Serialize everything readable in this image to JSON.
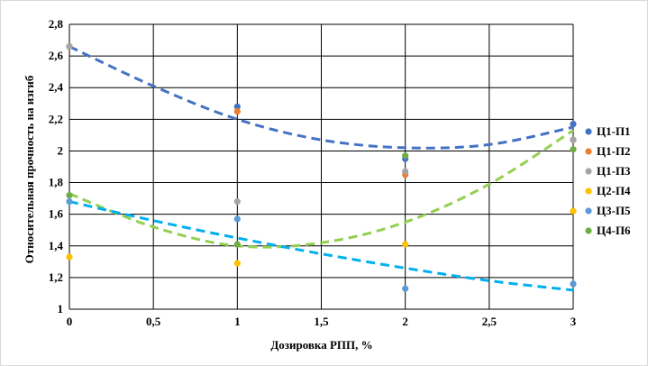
{
  "chart_data": {
    "type": "scatter",
    "title": "",
    "xlabel": "Дозировка РПП, %",
    "ylabel": "Относительная прочность на изгиб",
    "xlim": [
      0,
      3
    ],
    "ylim": [
      1,
      2.8
    ],
    "x_ticks": [
      {
        "value": 0,
        "label": "0"
      },
      {
        "value": 0.5,
        "label": "0,5"
      },
      {
        "value": 1,
        "label": "1"
      },
      {
        "value": 1.5,
        "label": "1,5"
      },
      {
        "value": 2,
        "label": "2"
      },
      {
        "value": 2.5,
        "label": "2,5"
      },
      {
        "value": 3,
        "label": "3"
      }
    ],
    "y_ticks": [
      {
        "value": 1,
        "label": "1"
      },
      {
        "value": 1.2,
        "label": "1,2"
      },
      {
        "value": 1.4,
        "label": "1,4"
      },
      {
        "value": 1.6,
        "label": "1,6"
      },
      {
        "value": 1.8,
        "label": "1,8"
      },
      {
        "value": 2,
        "label": "2"
      },
      {
        "value": 2.2,
        "label": "2,2"
      },
      {
        "value": 2.4,
        "label": "2,4"
      },
      {
        "value": 2.6,
        "label": "2,6"
      },
      {
        "value": 2.8,
        "label": "2,8"
      }
    ],
    "grid": true,
    "legend_position": "right",
    "series": [
      {
        "name": "Ц1-П1",
        "color": "#4472c4",
        "x": [
          0,
          1,
          2,
          3
        ],
        "y": [
          2.66,
          2.28,
          1.95,
          2.17
        ]
      },
      {
        "name": "Ц1-П2",
        "color": "#ed7d31",
        "x": [
          0,
          1,
          2,
          3
        ],
        "y": [
          2.66,
          2.25,
          1.85,
          2.07
        ]
      },
      {
        "name": "Ц1-П3",
        "color": "#a5a5a5",
        "x": [
          0,
          1,
          2,
          3
        ],
        "y": [
          2.66,
          1.68,
          1.87,
          2.07
        ]
      },
      {
        "name": "Ц2-П4",
        "color": "#ffc000",
        "x": [
          0,
          1,
          2,
          3
        ],
        "y": [
          1.33,
          1.29,
          1.41,
          1.62
        ]
      },
      {
        "name": "Ц3-П5",
        "color": "#5b9bd5",
        "x": [
          0,
          1,
          2,
          3
        ],
        "y": [
          1.68,
          1.57,
          1.13,
          1.16
        ]
      },
      {
        "name": "Ц4-П6",
        "color": "#70ad47",
        "x": [
          0,
          1,
          2,
          3
        ],
        "y": [
          1.72,
          1.41,
          1.97,
          2.01
        ]
      }
    ],
    "trendlines": [
      {
        "color": "#4472c4",
        "x": [
          0,
          0.5,
          1,
          1.5,
          2,
          2.5,
          3
        ],
        "y": [
          2.66,
          2.41,
          2.2,
          2.07,
          2.02,
          2.04,
          2.15
        ]
      },
      {
        "color": "#92d050",
        "x": [
          0,
          0.5,
          1,
          1.5,
          2,
          2.5,
          3
        ],
        "y": [
          1.73,
          1.52,
          1.4,
          1.42,
          1.55,
          1.79,
          2.13
        ]
      },
      {
        "color": "#00b0f0",
        "x": [
          0,
          0.5,
          1,
          1.5,
          2,
          2.5,
          3
        ],
        "y": [
          1.68,
          1.56,
          1.45,
          1.35,
          1.26,
          1.18,
          1.12
        ]
      }
    ]
  }
}
